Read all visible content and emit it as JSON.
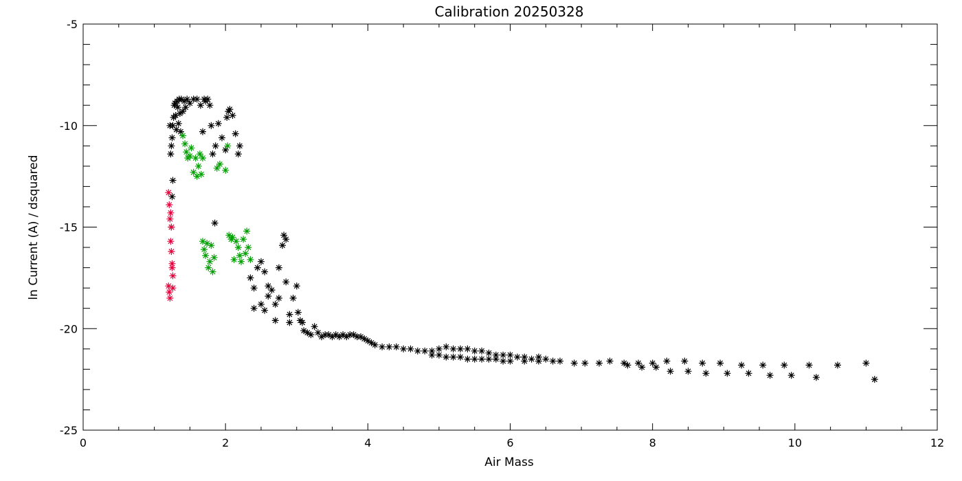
{
  "chart_data": {
    "type": "scatter",
    "title": "Calibration 20250328",
    "xlabel": "Air Mass",
    "ylabel": "ln Current (A) / dsquared",
    "xlim": [
      0,
      12
    ],
    "ylim": [
      -25,
      -5
    ],
    "xticks": [
      0,
      2,
      4,
      6,
      8,
      10,
      12
    ],
    "yticks": [
      -25,
      -20,
      -15,
      -10,
      -5
    ],
    "grid": false,
    "legend": "none",
    "marker": "asterisk",
    "series": [
      {
        "color": "#000000",
        "points": [
          [
            1.22,
            -10.0
          ],
          [
            1.23,
            -11.4
          ],
          [
            1.24,
            -11.0
          ],
          [
            1.25,
            -10.6
          ],
          [
            1.26,
            -10.0
          ],
          [
            1.27,
            -9.6
          ],
          [
            1.28,
            -9.0
          ],
          [
            1.29,
            -8.9
          ],
          [
            1.3,
            -9.5
          ],
          [
            1.31,
            -10.2
          ],
          [
            1.32,
            -8.8
          ],
          [
            1.33,
            -9.1
          ],
          [
            1.34,
            -9.9
          ],
          [
            1.35,
            -8.7
          ],
          [
            1.36,
            -9.4
          ],
          [
            1.37,
            -10.3
          ],
          [
            1.38,
            -8.7
          ],
          [
            1.4,
            -9.3
          ],
          [
            1.42,
            -8.8
          ],
          [
            1.44,
            -9.1
          ],
          [
            1.46,
            -8.7
          ],
          [
            1.5,
            -8.9
          ],
          [
            1.55,
            -8.7
          ],
          [
            1.6,
            -8.7
          ],
          [
            1.65,
            -9.0
          ],
          [
            1.68,
            -10.3
          ],
          [
            1.7,
            -8.7
          ],
          [
            1.72,
            -8.8
          ],
          [
            1.75,
            -8.7
          ],
          [
            1.78,
            -9.0
          ],
          [
            1.8,
            -10.0
          ],
          [
            1.82,
            -11.4
          ],
          [
            1.86,
            -11.0
          ],
          [
            1.9,
            -9.9
          ],
          [
            1.95,
            -10.6
          ],
          [
            2.0,
            -11.2
          ],
          [
            2.02,
            -9.6
          ],
          [
            2.04,
            -9.3
          ],
          [
            2.06,
            -9.2
          ],
          [
            2.1,
            -9.5
          ],
          [
            2.14,
            -10.4
          ],
          [
            2.18,
            -11.4
          ],
          [
            2.2,
            -11.0
          ],
          [
            1.24,
            -15.0
          ],
          [
            1.25,
            -13.5
          ],
          [
            1.26,
            -12.7
          ],
          [
            1.85,
            -14.8
          ],
          [
            2.35,
            -17.5
          ],
          [
            2.4,
            -18.0
          ],
          [
            2.45,
            -17.0
          ],
          [
            2.5,
            -16.7
          ],
          [
            2.55,
            -17.2
          ],
          [
            2.4,
            -19.0
          ],
          [
            2.5,
            -18.8
          ],
          [
            2.55,
            -19.1
          ],
          [
            2.6,
            -18.4
          ],
          [
            2.6,
            -17.9
          ],
          [
            2.65,
            -18.1
          ],
          [
            2.7,
            -19.6
          ],
          [
            2.7,
            -18.8
          ],
          [
            2.75,
            -18.5
          ],
          [
            2.75,
            -17.0
          ],
          [
            2.8,
            -15.9
          ],
          [
            2.82,
            -15.4
          ],
          [
            2.85,
            -15.6
          ],
          [
            2.85,
            -17.7
          ],
          [
            2.9,
            -19.3
          ],
          [
            2.95,
            -18.5
          ],
          [
            3.0,
            -17.9
          ],
          [
            3.02,
            -19.2
          ],
          [
            3.05,
            -19.6
          ],
          [
            3.08,
            -19.7
          ],
          [
            2.9,
            -19.7
          ],
          [
            3.1,
            -20.1
          ],
          [
            3.15,
            -20.2
          ],
          [
            3.2,
            -20.3
          ],
          [
            3.25,
            -19.9
          ],
          [
            3.3,
            -20.2
          ],
          [
            3.35,
            -20.4
          ],
          [
            3.4,
            -20.3
          ],
          [
            3.45,
            -20.3
          ],
          [
            3.5,
            -20.4
          ],
          [
            3.55,
            -20.3
          ],
          [
            3.6,
            -20.4
          ],
          [
            3.65,
            -20.3
          ],
          [
            3.7,
            -20.4
          ],
          [
            3.75,
            -20.3
          ],
          [
            3.8,
            -20.3
          ],
          [
            3.85,
            -20.4
          ],
          [
            3.9,
            -20.4
          ],
          [
            3.95,
            -20.5
          ],
          [
            4.0,
            -20.6
          ],
          [
            4.05,
            -20.7
          ],
          [
            4.1,
            -20.8
          ],
          [
            4.2,
            -20.9
          ],
          [
            4.3,
            -20.9
          ],
          [
            4.4,
            -20.9
          ],
          [
            4.5,
            -21.0
          ],
          [
            4.6,
            -21.0
          ],
          [
            4.7,
            -21.1
          ],
          [
            4.8,
            -21.1
          ],
          [
            4.9,
            -21.1
          ],
          [
            5.0,
            -21.0
          ],
          [
            5.1,
            -20.9
          ],
          [
            5.2,
            -21.0
          ],
          [
            5.3,
            -21.0
          ],
          [
            5.4,
            -21.0
          ],
          [
            5.5,
            -21.1
          ],
          [
            5.6,
            -21.1
          ],
          [
            5.7,
            -21.2
          ],
          [
            5.8,
            -21.3
          ],
          [
            5.9,
            -21.3
          ],
          [
            6.0,
            -21.3
          ],
          [
            6.1,
            -21.4
          ],
          [
            6.2,
            -21.4
          ],
          [
            6.3,
            -21.5
          ],
          [
            6.4,
            -21.4
          ],
          [
            6.5,
            -21.5
          ],
          [
            4.9,
            -21.3
          ],
          [
            5.0,
            -21.3
          ],
          [
            5.1,
            -21.4
          ],
          [
            5.2,
            -21.4
          ],
          [
            5.3,
            -21.4
          ],
          [
            5.4,
            -21.5
          ],
          [
            5.5,
            -21.5
          ],
          [
            5.6,
            -21.5
          ],
          [
            5.7,
            -21.5
          ],
          [
            5.8,
            -21.5
          ],
          [
            5.9,
            -21.6
          ],
          [
            6.0,
            -21.6
          ],
          [
            6.2,
            -21.6
          ],
          [
            6.4,
            -21.6
          ],
          [
            6.6,
            -21.6
          ],
          [
            6.7,
            -21.6
          ],
          [
            6.9,
            -21.7
          ],
          [
            7.05,
            -21.7
          ],
          [
            7.25,
            -21.7
          ],
          [
            7.4,
            -21.6
          ],
          [
            7.6,
            -21.7
          ],
          [
            7.8,
            -21.7
          ],
          [
            8.0,
            -21.7
          ],
          [
            8.2,
            -21.6
          ],
          [
            8.45,
            -21.6
          ],
          [
            8.7,
            -21.7
          ],
          [
            8.95,
            -21.7
          ],
          [
            9.25,
            -21.8
          ],
          [
            9.55,
            -21.8
          ],
          [
            9.85,
            -21.8
          ],
          [
            10.2,
            -21.8
          ],
          [
            10.6,
            -21.8
          ],
          [
            11.0,
            -21.7
          ],
          [
            7.65,
            -21.8
          ],
          [
            7.85,
            -21.9
          ],
          [
            8.05,
            -21.9
          ],
          [
            8.25,
            -22.1
          ],
          [
            8.5,
            -22.1
          ],
          [
            8.75,
            -22.2
          ],
          [
            9.05,
            -22.2
          ],
          [
            9.35,
            -22.2
          ],
          [
            9.65,
            -22.3
          ],
          [
            9.95,
            -22.3
          ],
          [
            10.3,
            -22.4
          ],
          [
            11.12,
            -22.5
          ]
        ]
      },
      {
        "color": "#00a000",
        "points": [
          [
            1.4,
            -10.5
          ],
          [
            1.43,
            -10.9
          ],
          [
            1.45,
            -11.3
          ],
          [
            1.47,
            -11.6
          ],
          [
            1.5,
            -11.5
          ],
          [
            1.52,
            -11.1
          ],
          [
            1.55,
            -12.3
          ],
          [
            1.58,
            -11.6
          ],
          [
            1.6,
            -12.5
          ],
          [
            1.62,
            -12.0
          ],
          [
            1.64,
            -11.4
          ],
          [
            1.66,
            -12.4
          ],
          [
            1.68,
            -11.6
          ],
          [
            1.88,
            -12.1
          ],
          [
            1.92,
            -11.9
          ],
          [
            2.0,
            -12.2
          ],
          [
            2.03,
            -11.0
          ],
          [
            1.68,
            -15.7
          ],
          [
            1.7,
            -16.1
          ],
          [
            1.72,
            -16.4
          ],
          [
            1.74,
            -15.8
          ],
          [
            1.76,
            -17.0
          ],
          [
            1.78,
            -16.7
          ],
          [
            1.8,
            -15.9
          ],
          [
            1.82,
            -17.2
          ],
          [
            1.84,
            -16.5
          ],
          [
            2.05,
            -15.4
          ],
          [
            2.08,
            -15.6
          ],
          [
            2.1,
            -15.5
          ],
          [
            2.12,
            -16.6
          ],
          [
            2.15,
            -15.7
          ],
          [
            2.18,
            -16.0
          ],
          [
            2.2,
            -16.4
          ],
          [
            2.22,
            -16.7
          ],
          [
            2.25,
            -15.6
          ],
          [
            2.28,
            -16.3
          ],
          [
            2.3,
            -15.2
          ],
          [
            2.32,
            -16.0
          ],
          [
            2.35,
            -16.6
          ]
        ]
      },
      {
        "color": "#e8003a",
        "points": [
          [
            1.2,
            -13.3
          ],
          [
            1.21,
            -13.9
          ],
          [
            1.22,
            -14.6
          ],
          [
            1.23,
            -15.7
          ],
          [
            1.24,
            -16.2
          ],
          [
            1.25,
            -16.8
          ],
          [
            1.26,
            -17.4
          ],
          [
            1.2,
            -17.9
          ],
          [
            1.21,
            -18.2
          ],
          [
            1.22,
            -18.5
          ],
          [
            1.23,
            -14.3
          ],
          [
            1.24,
            -15.0
          ],
          [
            1.25,
            -17.0
          ],
          [
            1.26,
            -18.0
          ]
        ]
      }
    ]
  }
}
